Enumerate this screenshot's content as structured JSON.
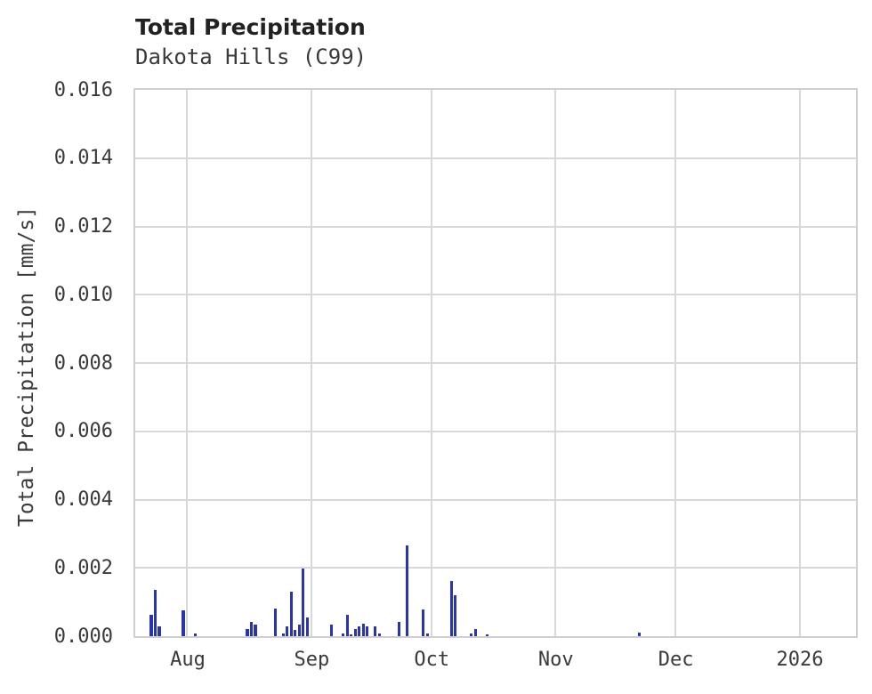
{
  "header": {
    "title": "Total Precipitation",
    "subtitle": "Dakota Hills (C99)"
  },
  "axes": {
    "y_title": "Total Precipitation [mm/s]",
    "y_ticks": [
      {
        "label": "0.000",
        "value": 0.0
      },
      {
        "label": "0.002",
        "value": 0.002
      },
      {
        "label": "0.004",
        "value": 0.004
      },
      {
        "label": "0.006",
        "value": 0.006
      },
      {
        "label": "0.008",
        "value": 0.008
      },
      {
        "label": "0.010",
        "value": 0.01
      },
      {
        "label": "0.012",
        "value": 0.012
      },
      {
        "label": "0.014",
        "value": 0.014
      },
      {
        "label": "0.016",
        "value": 0.016
      }
    ],
    "x_ticks": [
      {
        "label": "Aug",
        "date": "2025-08-01"
      },
      {
        "label": "Sep",
        "date": "2025-09-01"
      },
      {
        "label": "Oct",
        "date": "2025-10-01"
      },
      {
        "label": "Nov",
        "date": "2025-11-01"
      },
      {
        "label": "Dec",
        "date": "2025-12-01"
      },
      {
        "label": "2026",
        "date": "2026-01-01"
      }
    ]
  },
  "colors": {
    "bar": "#2b35ab",
    "grid": "#d8d8d8",
    "border": "#cfcfcf",
    "text": "#3a3a3a",
    "title_text": "#222222"
  },
  "chart_data": {
    "type": "bar",
    "title": "Total Precipitation",
    "subtitle": "Dakota Hills (C99)",
    "xlabel": "",
    "ylabel": "Total Precipitation [mm/s]",
    "ylim": [
      0,
      0.016
    ],
    "y_tick_step": 0.002,
    "x_range": [
      "2025-07-19",
      "2026-01-15"
    ],
    "grid": true,
    "legend": "none",
    "bars": [
      {
        "date": "2025-07-23",
        "value": 0.00062
      },
      {
        "date": "2025-07-24",
        "value": 0.00135
      },
      {
        "date": "2025-07-25",
        "value": 0.00028
      },
      {
        "date": "2025-07-31",
        "value": 0.00075
      },
      {
        "date": "2025-08-03",
        "value": 9e-05
      },
      {
        "date": "2025-08-16",
        "value": 0.00022
      },
      {
        "date": "2025-08-17",
        "value": 0.00043
      },
      {
        "date": "2025-08-18",
        "value": 0.00035
      },
      {
        "date": "2025-08-23",
        "value": 0.0008
      },
      {
        "date": "2025-08-25",
        "value": 9e-05
      },
      {
        "date": "2025-08-26",
        "value": 0.0003
      },
      {
        "date": "2025-08-27",
        "value": 0.0013
      },
      {
        "date": "2025-08-28",
        "value": 0.00017
      },
      {
        "date": "2025-08-29",
        "value": 0.00035
      },
      {
        "date": "2025-08-30",
        "value": 0.00197
      },
      {
        "date": "2025-08-31",
        "value": 0.00055
      },
      {
        "date": "2025-09-06",
        "value": 0.00035
      },
      {
        "date": "2025-09-09",
        "value": 7e-05
      },
      {
        "date": "2025-09-10",
        "value": 0.00062
      },
      {
        "date": "2025-09-11",
        "value": 5e-05
      },
      {
        "date": "2025-09-12",
        "value": 0.00022
      },
      {
        "date": "2025-09-13",
        "value": 0.0003
      },
      {
        "date": "2025-09-14",
        "value": 0.00036
      },
      {
        "date": "2025-09-15",
        "value": 0.0003
      },
      {
        "date": "2025-09-17",
        "value": 0.00028
      },
      {
        "date": "2025-09-18",
        "value": 7e-05
      },
      {
        "date": "2025-09-23",
        "value": 0.00042
      },
      {
        "date": "2025-09-25",
        "value": 0.00266
      },
      {
        "date": "2025-09-29",
        "value": 0.00078
      },
      {
        "date": "2025-09-30",
        "value": 9e-05
      },
      {
        "date": "2025-10-06",
        "value": 0.00162
      },
      {
        "date": "2025-10-07",
        "value": 0.00121
      },
      {
        "date": "2025-10-11",
        "value": 9e-05
      },
      {
        "date": "2025-10-12",
        "value": 0.00021
      },
      {
        "date": "2025-10-15",
        "value": 6e-05
      },
      {
        "date": "2025-11-22",
        "value": 0.00011
      }
    ]
  }
}
